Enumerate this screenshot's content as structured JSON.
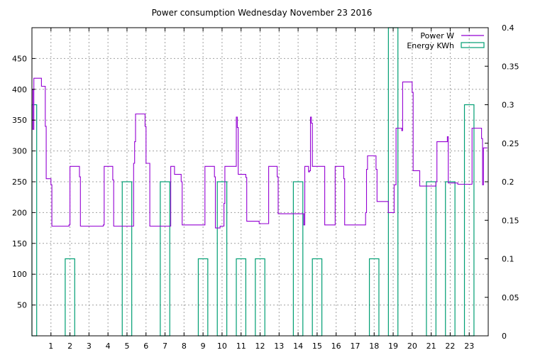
{
  "chart_data": {
    "type": "line",
    "title": "Power consumption Wednesday November 23 2016",
    "xlabel": "",
    "ylabel": "",
    "y2label": "",
    "xlim": [
      0,
      24
    ],
    "ylim": [
      0,
      500
    ],
    "y2lim": [
      0,
      0.4
    ],
    "grid": true,
    "legend_position": "top-right",
    "x_ticks": [
      1,
      2,
      3,
      4,
      5,
      6,
      7,
      8,
      9,
      10,
      11,
      12,
      13,
      14,
      15,
      16,
      17,
      18,
      19,
      20,
      21,
      22,
      23
    ],
    "y_ticks": [
      50,
      100,
      150,
      200,
      250,
      300,
      350,
      400,
      450
    ],
    "y2_ticks": [
      0,
      0.05,
      0.1,
      0.15,
      0.2,
      0.25,
      0.3,
      0.35,
      0.4
    ],
    "series": [
      {
        "name": "Power W",
        "axis": "left",
        "color": "#9400d3",
        "points": [
          [
            0.0,
            400
          ],
          [
            0.05,
            335
          ],
          [
            0.1,
            418
          ],
          [
            0.45,
            418
          ],
          [
            0.5,
            405
          ],
          [
            0.65,
            405
          ],
          [
            0.7,
            340
          ],
          [
            0.75,
            255
          ],
          [
            0.95,
            255
          ],
          [
            1.0,
            245
          ],
          [
            1.05,
            178
          ],
          [
            1.9,
            178
          ],
          [
            1.95,
            180
          ],
          [
            2.0,
            275
          ],
          [
            2.45,
            275
          ],
          [
            2.5,
            258
          ],
          [
            2.55,
            178
          ],
          [
            3.7,
            178
          ],
          [
            3.75,
            180
          ],
          [
            3.8,
            275
          ],
          [
            4.2,
            275
          ],
          [
            4.25,
            253
          ],
          [
            4.3,
            178
          ],
          [
            5.3,
            178
          ],
          [
            5.35,
            280
          ],
          [
            5.4,
            315
          ],
          [
            5.45,
            360
          ],
          [
            5.9,
            360
          ],
          [
            5.95,
            340
          ],
          [
            6.0,
            280
          ],
          [
            6.15,
            280
          ],
          [
            6.2,
            178
          ],
          [
            7.25,
            178
          ],
          [
            7.3,
            275
          ],
          [
            7.45,
            275
          ],
          [
            7.5,
            262
          ],
          [
            7.8,
            262
          ],
          [
            7.85,
            250
          ],
          [
            7.9,
            180
          ],
          [
            9.05,
            180
          ],
          [
            9.1,
            275
          ],
          [
            9.55,
            275
          ],
          [
            9.6,
            258
          ],
          [
            9.65,
            175
          ],
          [
            9.85,
            175
          ],
          [
            9.9,
            178
          ],
          [
            10.05,
            178
          ],
          [
            10.1,
            215
          ],
          [
            10.15,
            275
          ],
          [
            10.7,
            275
          ],
          [
            10.75,
            355
          ],
          [
            10.8,
            338
          ],
          [
            10.85,
            262
          ],
          [
            11.2,
            262
          ],
          [
            11.25,
            257
          ],
          [
            11.3,
            186
          ],
          [
            11.9,
            186
          ],
          [
            11.95,
            182
          ],
          [
            12.4,
            182
          ],
          [
            12.45,
            275
          ],
          [
            12.85,
            275
          ],
          [
            12.9,
            258
          ],
          [
            12.95,
            198
          ],
          [
            14.25,
            198
          ],
          [
            14.3,
            180
          ],
          [
            14.35,
            275
          ],
          [
            14.5,
            275
          ],
          [
            14.55,
            266
          ],
          [
            14.6,
            268
          ],
          [
            14.65,
            355
          ],
          [
            14.7,
            345
          ],
          [
            14.75,
            275
          ],
          [
            15.35,
            275
          ],
          [
            15.4,
            180
          ],
          [
            15.9,
            180
          ],
          [
            15.95,
            275
          ],
          [
            16.35,
            275
          ],
          [
            16.4,
            255
          ],
          [
            16.45,
            180
          ],
          [
            17.5,
            180
          ],
          [
            17.55,
            200
          ],
          [
            17.6,
            270
          ],
          [
            17.65,
            292
          ],
          [
            18.05,
            292
          ],
          [
            18.1,
            270
          ],
          [
            18.15,
            218
          ],
          [
            18.7,
            218
          ],
          [
            18.75,
            200
          ],
          [
            19.0,
            200
          ],
          [
            19.05,
            245
          ],
          [
            19.15,
            337
          ],
          [
            19.4,
            337
          ],
          [
            19.45,
            333
          ],
          [
            19.5,
            412
          ],
          [
            19.95,
            412
          ],
          [
            20.0,
            395
          ],
          [
            20.05,
            268
          ],
          [
            20.35,
            268
          ],
          [
            20.4,
            243
          ],
          [
            21.2,
            243
          ],
          [
            21.25,
            250
          ],
          [
            21.3,
            315
          ],
          [
            21.8,
            315
          ],
          [
            21.85,
            323
          ],
          [
            21.9,
            248
          ],
          [
            22.35,
            248
          ],
          [
            22.4,
            246
          ],
          [
            23.1,
            246
          ],
          [
            23.15,
            337
          ],
          [
            23.6,
            337
          ],
          [
            23.65,
            320
          ],
          [
            23.7,
            245
          ],
          [
            23.75,
            305
          ],
          [
            23.95,
            305
          ]
        ]
      },
      {
        "name": "Energy KWh",
        "axis": "right",
        "color": "#009e73",
        "bar_width": 0.5,
        "bars": [
          [
            0.0,
            0.3
          ],
          [
            2.0,
            0.1
          ],
          [
            5.0,
            0.2
          ],
          [
            7.0,
            0.2
          ],
          [
            9.0,
            0.1
          ],
          [
            10.0,
            0.2
          ],
          [
            11.0,
            0.1
          ],
          [
            12.0,
            0.1
          ],
          [
            14.0,
            0.2
          ],
          [
            15.0,
            0.1
          ],
          [
            18.0,
            0.1
          ],
          [
            19.0,
            0.4
          ],
          [
            21.0,
            0.2
          ],
          [
            22.0,
            0.2
          ],
          [
            23.0,
            0.3
          ]
        ]
      }
    ]
  }
}
